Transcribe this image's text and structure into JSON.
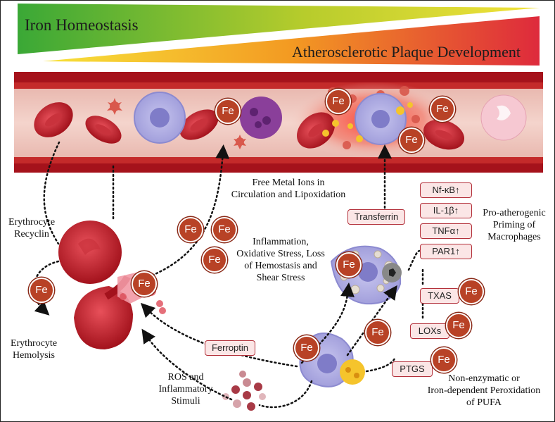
{
  "titles": {
    "iron_homeostasis": "Iron Homeostasis",
    "plaque_development": "Atherosclerotic Plaque Development"
  },
  "colors": {
    "green": "#4aae2e",
    "yellow": "#e8d12a",
    "orange": "#f18a22",
    "red": "#d9253a",
    "vessel": "#b0161f",
    "fe_badge": "#b84226"
  },
  "labels": {
    "erythrocyte_recycling": "Erythrocyte\nRecyclin",
    "erythrocyte_hemolysis": "Erythrocyte\nHemolysis",
    "free_metal_ions": "Free Metal Ions in\nCirculation and Lipoxidation",
    "inflammation": "Inflammation,\nOxidative Stress, Loss\nof Hemostasis and\nShear Stress",
    "ros": "ROS and\nInflammatory\nStimuli",
    "pro_atherogenic": "Pro-atherogenic\nPriming of\nMacrophages",
    "non_enzymatic": "Non-enzymatic or\nIron-dependent Peroxidation\nof PUFA"
  },
  "boxes": {
    "transferrin": "Transferrin",
    "ferroptin": "Ferroptin",
    "nfkb": "Nf-κB↑",
    "il1b": "IL-1β↑",
    "tnfa": "TNFα↑",
    "par1": "PAR1↑",
    "txas": "TXAS",
    "loxs": "LOXs",
    "ptgs": "PTGS"
  },
  "fe_label": "Fe"
}
